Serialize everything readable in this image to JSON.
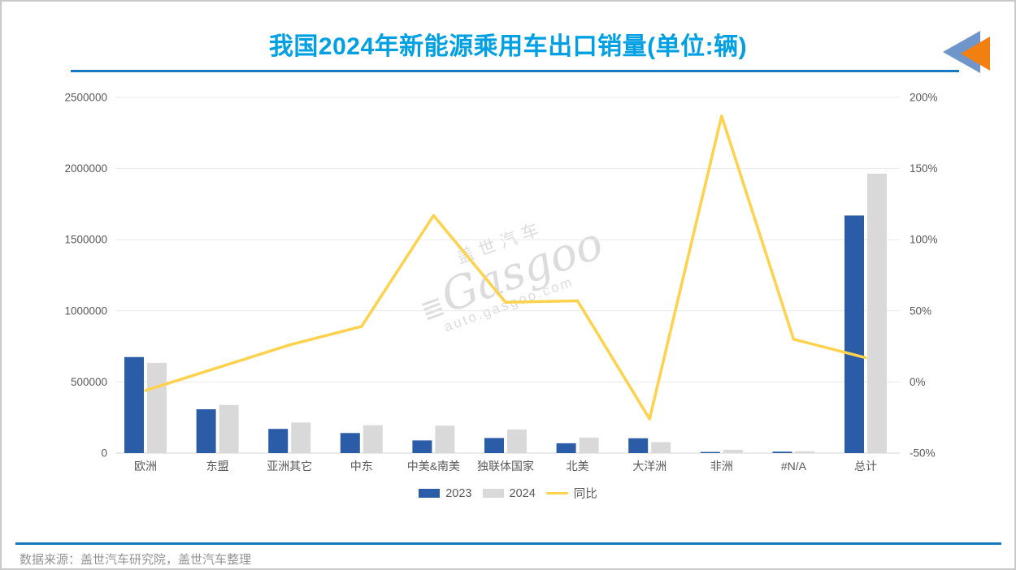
{
  "header": {
    "title": "我国2024年新能源乘用车出口销量(单位:辆)"
  },
  "logo": {
    "blue": "#6f96cb",
    "orange": "#f28011"
  },
  "chart_data": {
    "type": "bar",
    "subtype": "grouped bars with YoY line on secondary axis",
    "title": "我国2024年新能源乘用车出口销量(单位:辆)",
    "categories": [
      "欧洲",
      "东盟",
      "亚洲其它",
      "中东",
      "中美&南美",
      "独联体国家",
      "北美",
      "大洋洲",
      "非洲",
      "#N/A",
      "总计"
    ],
    "series": [
      {
        "name": "2023",
        "type": "bar",
        "color": "#2b5ca8",
        "values": [
          675000,
          308000,
          170000,
          141000,
          89000,
          106000,
          69000,
          104000,
          8000,
          10000,
          1670000
        ]
      },
      {
        "name": "2024",
        "type": "bar",
        "color": "#d9d9d9",
        "values": [
          634000,
          338000,
          215000,
          196000,
          193000,
          166000,
          109000,
          77000,
          23000,
          13000,
          1964000
        ]
      },
      {
        "name": "同比",
        "type": "line",
        "color": "#ffd24d",
        "axis": "right",
        "values_pct": [
          -6,
          10,
          26,
          39,
          117,
          56,
          57,
          -26,
          187,
          30,
          17
        ]
      }
    ],
    "left_axis": {
      "min": 0,
      "max": 2500000,
      "step": 500000,
      "ticks": [
        "0",
        "500000",
        "1000000",
        "1500000",
        "2000000",
        "2500000"
      ]
    },
    "right_axis": {
      "min": -50,
      "max": 200,
      "step": 50,
      "ticks": [
        "-50%",
        "0%",
        "50%",
        "100%",
        "150%",
        "200%"
      ]
    },
    "legend": {
      "position": "bottom",
      "items": [
        "2023",
        "2024",
        "同比"
      ]
    },
    "grid": true,
    "colors": {
      "grid": "#e9e9e9",
      "baseline": "#d5d5d5",
      "tick_text": "#595959"
    }
  },
  "watermark": {
    "line1": "盖世汽车",
    "line2": "Gasgoo",
    "line3": "auto.gasgoo.com"
  },
  "footer": {
    "source": "数据来源：盖世汽车研究院，盖世汽车整理"
  }
}
